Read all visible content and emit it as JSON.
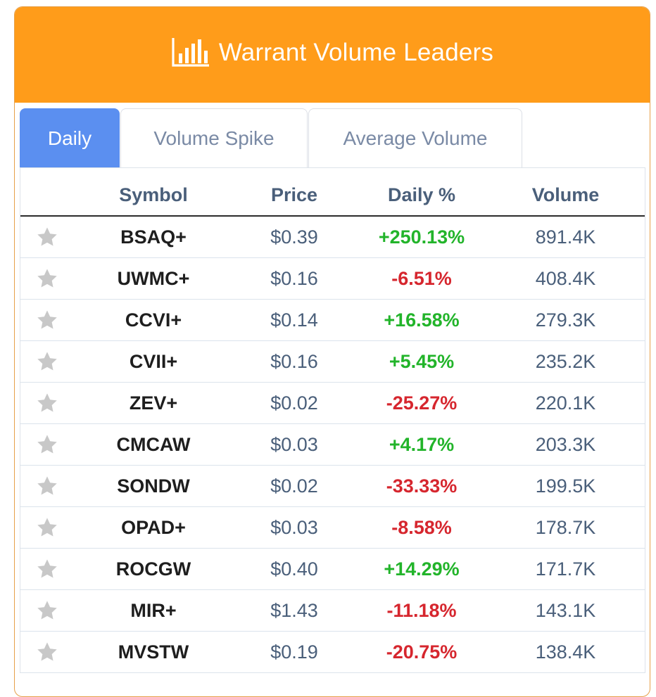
{
  "header": {
    "title": "Warrant Volume Leaders",
    "icon": "bar-chart-icon"
  },
  "tabs": [
    {
      "label": "Daily",
      "active": true
    },
    {
      "label": "Volume Spike",
      "active": false
    },
    {
      "label": "Average Volume",
      "active": false
    }
  ],
  "table": {
    "columns": [
      "",
      "Symbol",
      "Price",
      "Daily %",
      "Volume"
    ],
    "rows": [
      {
        "symbol": "BSAQ+",
        "price": "$0.39",
        "daily_pct": "+250.13%",
        "direction": "up",
        "volume": "891.4K"
      },
      {
        "symbol": "UWMC+",
        "price": "$0.16",
        "daily_pct": "-6.51%",
        "direction": "down",
        "volume": "408.4K"
      },
      {
        "symbol": "CCVI+",
        "price": "$0.14",
        "daily_pct": "+16.58%",
        "direction": "up",
        "volume": "279.3K"
      },
      {
        "symbol": "CVII+",
        "price": "$0.16",
        "daily_pct": "+5.45%",
        "direction": "up",
        "volume": "235.2K"
      },
      {
        "symbol": "ZEV+",
        "price": "$0.02",
        "daily_pct": "-25.27%",
        "direction": "down",
        "volume": "220.1K"
      },
      {
        "symbol": "CMCAW",
        "price": "$0.03",
        "daily_pct": "+4.17%",
        "direction": "up",
        "volume": "203.3K"
      },
      {
        "symbol": "SONDW",
        "price": "$0.02",
        "daily_pct": "-33.33%",
        "direction": "down",
        "volume": "199.5K"
      },
      {
        "symbol": "OPAD+",
        "price": "$0.03",
        "daily_pct": "-8.58%",
        "direction": "down",
        "volume": "178.7K"
      },
      {
        "symbol": "ROCGW",
        "price": "$0.40",
        "daily_pct": "+14.29%",
        "direction": "up",
        "volume": "171.7K"
      },
      {
        "symbol": "MIR+",
        "price": "$1.43",
        "daily_pct": "-11.18%",
        "direction": "down",
        "volume": "143.1K"
      },
      {
        "symbol": "MVSTW",
        "price": "$0.19",
        "daily_pct": "-20.75%",
        "direction": "down",
        "volume": "138.4K"
      }
    ]
  },
  "colors": {
    "header_bg": "#ff9c1a",
    "active_tab": "#5b8ff0",
    "positive": "#22b42a",
    "negative": "#d6262e",
    "star": "#c8c8c8"
  }
}
